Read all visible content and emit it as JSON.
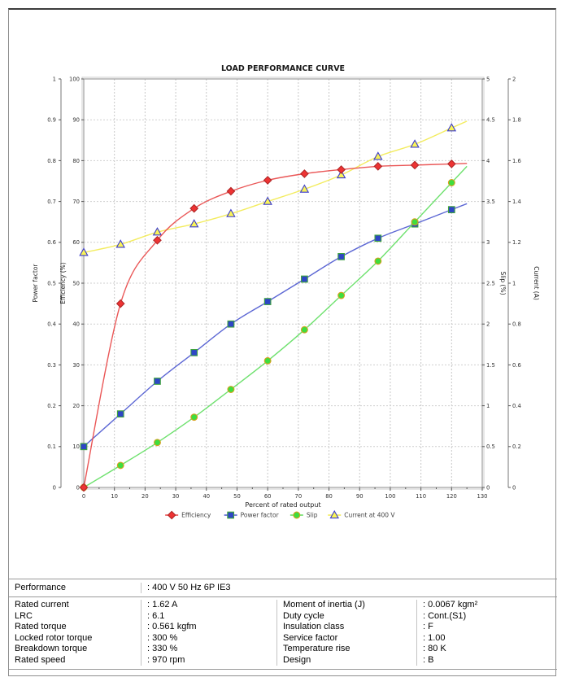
{
  "page": {
    "title": "LOAD PERFORMANCE CURVE"
  },
  "chart_data": {
    "type": "line",
    "title": "LOAD PERFORMANCE CURVE",
    "xlabel": "Percent of rated output",
    "x_range": [
      0,
      130
    ],
    "x_tick_step": 10,
    "x_minor_tick_step": 5,
    "grid": true,
    "legend_position": "bottom",
    "line_end_x": 125,
    "axes": [
      {
        "id": "power_factor",
        "label": "Power factor",
        "range": [
          0,
          1
        ],
        "tick_step": 0.1,
        "side": "left-outer"
      },
      {
        "id": "efficiency",
        "label": "Efficiency (%)",
        "range": [
          0,
          100
        ],
        "tick_step": 10,
        "side": "left-inner"
      },
      {
        "id": "slip",
        "label": "Slip (%)",
        "range": [
          0,
          5
        ],
        "tick_step": 0.5,
        "side": "right-inner"
      },
      {
        "id": "current",
        "label": "Current (A)",
        "range": [
          0,
          2
        ],
        "tick_step": 0.2,
        "side": "right-outer"
      }
    ],
    "x": [
      0,
      12,
      24,
      36,
      48,
      60,
      72,
      84,
      96,
      108,
      120
    ],
    "series": [
      {
        "name": "Current at 400 V",
        "axis": "current",
        "marker": "triangle",
        "line_color": "#f2ea4e",
        "marker_fill": "#f9f457",
        "marker_stroke": "#3c3ccc",
        "values": [
          1.15,
          1.19,
          1.25,
          1.29,
          1.34,
          1.4,
          1.46,
          1.53,
          1.62,
          1.68,
          1.76
        ]
      },
      {
        "name": "Power factor",
        "axis": "power_factor",
        "marker": "square",
        "line_color": "#4a57cf",
        "marker_fill": "#2e46c6",
        "marker_stroke": "#3da23d",
        "values": [
          0.1,
          0.18,
          0.26,
          0.33,
          0.4,
          0.455,
          0.51,
          0.565,
          0.61,
          0.645,
          0.68
        ]
      },
      {
        "name": "Slip",
        "axis": "slip",
        "marker": "circle",
        "line_color": "#5ede5e",
        "marker_fill": "#3edd3e",
        "marker_stroke": "#d8a01d",
        "values": [
          0,
          0.27,
          0.55,
          0.86,
          1.2,
          1.55,
          1.93,
          2.35,
          2.77,
          3.25,
          3.73
        ]
      },
      {
        "name": "Efficiency",
        "axis": "efficiency",
        "marker": "diamond",
        "line_color": "#e84545",
        "marker_fill": "#ee3333",
        "marker_stroke": "#b02828",
        "values": [
          0,
          45,
          60.5,
          68.3,
          72.5,
          75.2,
          76.8,
          77.8,
          78.6,
          78.9,
          79.2
        ]
      }
    ],
    "legend_order": [
      "Efficiency",
      "Power factor",
      "Slip",
      "Current at 400 V"
    ]
  },
  "table": {
    "header_row": {
      "label": "Performance",
      "value": ": 400 V 50 Hz 6P IE3"
    },
    "rows": [
      {
        "l1": "Rated current",
        "v1": ": 1.62 A",
        "l2": "Moment of inertia (J)",
        "v2": ": 0.0067 kgm²"
      },
      {
        "l1": "LRC",
        "v1": ": 6.1",
        "l2": "Duty cycle",
        "v2": ": Cont.(S1)"
      },
      {
        "l1": "Rated torque",
        "v1": ": 0.561 kgfm",
        "l2": "Insulation class",
        "v2": ": F"
      },
      {
        "l1": "Locked rotor torque",
        "v1": ": 300 %",
        "l2": "Service factor",
        "v2": ": 1.00"
      },
      {
        "l1": "Breakdown torque",
        "v1": ": 330 %",
        "l2": "Temperature rise",
        "v2": ": 80 K"
      },
      {
        "l1": "Rated speed",
        "v1": ": 970 rpm",
        "l2": "Design",
        "v2": ": B"
      }
    ]
  }
}
